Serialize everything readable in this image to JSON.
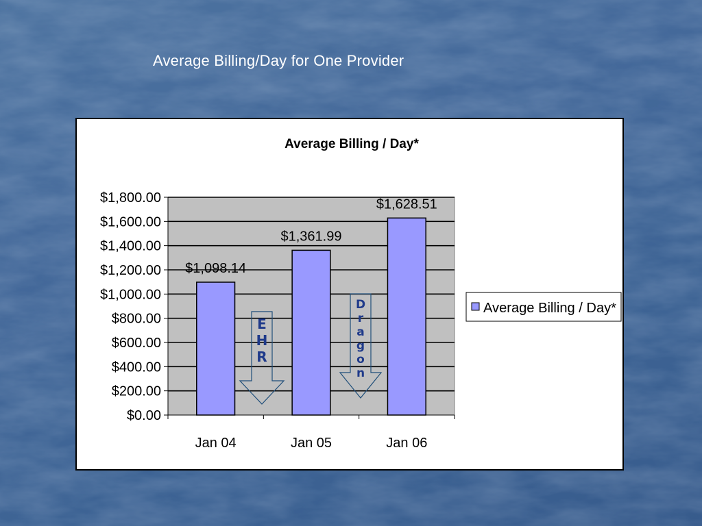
{
  "slide": {
    "title": "Average Billing/Day for One Provider"
  },
  "chart_data": {
    "type": "bar",
    "title": "Average Billing / Day*",
    "categories": [
      "Jan 04",
      "Jan 05",
      "Jan 06"
    ],
    "series": [
      {
        "name": "Average Billing / Day*",
        "values": [
          1098.14,
          1361.99,
          1628.51
        ]
      }
    ],
    "data_labels": [
      "$1,098.14",
      "$1,361.99",
      "$1,628.51"
    ],
    "y_ticks": [
      "$0.00",
      "$200.00",
      "$400.00",
      "$600.00",
      "$800.00",
      "$1,000.00",
      "$1,200.00",
      "$1,400.00",
      "$1,600.00",
      "$1,800.00"
    ],
    "ylim": [
      0,
      1800
    ],
    "grid": true,
    "legend": "right",
    "colors": {
      "bar": "#9999ff",
      "plot_area": "#c0c0c0"
    },
    "annotations": [
      {
        "text": "EHR",
        "type": "down-arrow"
      },
      {
        "text": "Dragon",
        "type": "down-arrow"
      }
    ]
  }
}
